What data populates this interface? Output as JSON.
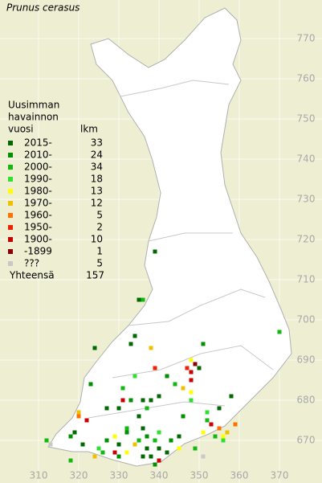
{
  "title": "Prunus cerasus",
  "legend": {
    "heading": [
      "Uusimman",
      "havainnon",
      "vuosi"
    ],
    "count_heading": "lkm",
    "rows": [
      {
        "label": "2015-",
        "count": 33,
        "color": "#006a00",
        "squares": [
          [
            339,
            717
          ],
          [
            335,
            705
          ],
          [
            334,
            696
          ],
          [
            333,
            694
          ],
          [
            324,
            693
          ],
          [
            327,
            678
          ],
          [
            330,
            678
          ],
          [
            336,
            680
          ],
          [
            338,
            680
          ],
          [
            335,
            676
          ],
          [
            336,
            673
          ],
          [
            340,
            668
          ],
          [
            337,
            668
          ],
          [
            338,
            666
          ],
          [
            336,
            666
          ],
          [
            342,
            667
          ],
          [
            321,
            669
          ],
          [
            319,
            672
          ],
          [
            330,
            669
          ],
          [
            355,
            678
          ],
          [
            345,
            671
          ],
          [
            350,
            688
          ],
          [
            340,
            681
          ],
          [
            358,
            681
          ]
        ]
      },
      {
        "label": "2010-",
        "count": 24,
        "color": "#009000",
        "squares": [
          [
            351,
            694
          ],
          [
            323,
            684
          ],
          [
            333,
            680
          ],
          [
            342,
            686
          ],
          [
            332,
            672
          ],
          [
            346,
            676
          ],
          [
            337,
            671
          ],
          [
            343,
            670
          ],
          [
            318,
            671
          ],
          [
            330,
            666
          ],
          [
            327,
            670
          ],
          [
            339,
            664
          ]
        ]
      },
      {
        "label": "2000-",
        "count": 34,
        "color": "#10b810",
        "squares": [
          [
            336,
            705
          ],
          [
            332,
            673
          ],
          [
            335,
            670
          ],
          [
            337,
            678
          ],
          [
            344,
            684
          ],
          [
            349,
            668
          ],
          [
            352,
            675
          ],
          [
            354,
            671
          ],
          [
            326,
            667
          ],
          [
            318,
            665
          ],
          [
            331,
            683
          ],
          [
            339,
            670
          ],
          [
            370,
            697
          ],
          [
            312,
            670
          ]
        ]
      },
      {
        "label": "1990-",
        "count": 18,
        "color": "#30e030",
        "squares": [
          [
            348,
            680
          ],
          [
            334,
            686
          ],
          [
            325,
            668
          ],
          [
            340,
            672
          ],
          [
            352,
            677
          ],
          [
            356,
            670
          ]
        ]
      },
      {
        "label": "1980-",
        "count": 13,
        "color": "#ffff00",
        "squares": [
          [
            348,
            690
          ],
          [
            348,
            682
          ],
          [
            332,
            667
          ],
          [
            329,
            671
          ],
          [
            345,
            668
          ],
          [
            351,
            672
          ],
          [
            356,
            671
          ]
        ]
      },
      {
        "label": "1970-",
        "count": 12,
        "color": "#f0c000",
        "squares": [
          [
            338,
            693
          ],
          [
            346,
            683
          ],
          [
            320,
            677
          ],
          [
            334,
            669
          ],
          [
            357,
            672
          ],
          [
            324,
            666
          ]
        ]
      },
      {
        "label": "1960-",
        "count": 5,
        "color": "#ff7000",
        "squares": [
          [
            359,
            674
          ],
          [
            320,
            676
          ],
          [
            355,
            673
          ]
        ]
      },
      {
        "label": "1950-",
        "count": 2,
        "color": "#ee2200",
        "squares": [
          [
            347,
            688
          ],
          [
            339,
            688
          ]
        ]
      },
      {
        "label": "1900-",
        "count": 10,
        "color": "#cc0000",
        "squares": [
          [
            322,
            675
          ],
          [
            331,
            680
          ],
          [
            348,
            687
          ],
          [
            348,
            685
          ],
          [
            353,
            674
          ],
          [
            329,
            667
          ],
          [
            340,
            665
          ]
        ]
      },
      {
        "label": "-1899",
        "count": 1,
        "color": "#880000",
        "squares": [
          [
            349,
            689
          ]
        ]
      },
      {
        "label": "???",
        "count": 5,
        "color": "#c8c8c8",
        "squares": [
          [
            313,
            669
          ],
          [
            351,
            666
          ]
        ]
      }
    ],
    "total_label": "Yhteensä",
    "total": 157
  },
  "axes": {
    "y_labels": [
      770,
      760,
      750,
      740,
      730,
      720,
      710,
      700,
      690,
      680,
      670
    ],
    "x_labels": [
      310,
      320,
      330,
      340,
      350,
      360,
      370
    ]
  }
}
